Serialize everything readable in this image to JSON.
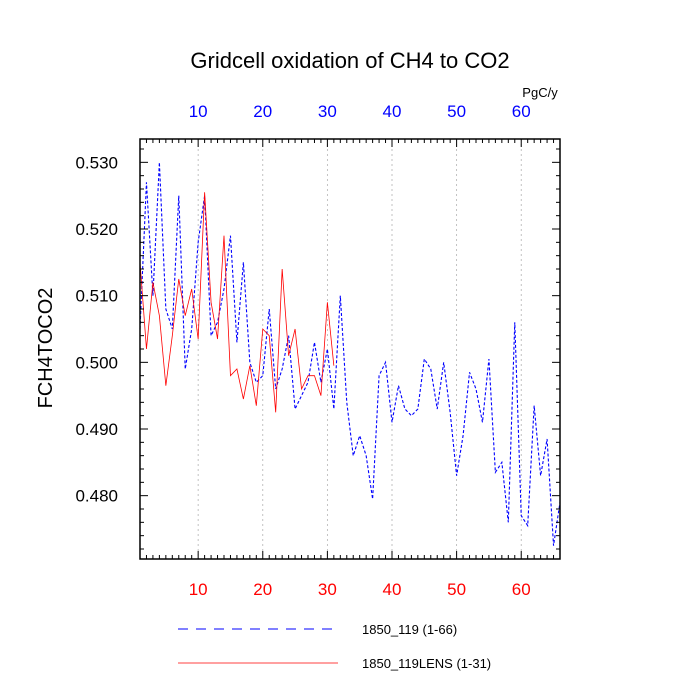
{
  "chart_data": {
    "type": "line",
    "title": "Gridcell oxidation of CH4 to CO2",
    "ylabel": "FCH4TOCO2",
    "xlabel": "",
    "units_label": "PgC/y",
    "xlim": [
      1,
      66
    ],
    "ylim": [
      0.4705,
      0.5335
    ],
    "x_ticks": [
      10,
      20,
      30,
      40,
      50,
      60
    ],
    "x_tick_labels": [
      "10",
      "20",
      "30",
      "40",
      "50",
      "60"
    ],
    "y_ticks": [
      0.48,
      0.49,
      0.5,
      0.51,
      0.52,
      0.53
    ],
    "y_tick_labels": [
      "0.480",
      "0.490",
      "0.500",
      "0.510",
      "0.520",
      "0.530"
    ],
    "series": [
      {
        "name": "1850_119 (1-66)",
        "color": "#0000ff",
        "style": "dashed",
        "x": [
          1,
          2,
          3,
          4,
          5,
          6,
          7,
          8,
          9,
          10,
          11,
          12,
          13,
          14,
          15,
          16,
          17,
          18,
          19,
          20,
          21,
          22,
          23,
          24,
          25,
          26,
          27,
          28,
          29,
          30,
          31,
          32,
          33,
          34,
          35,
          36,
          37,
          38,
          39,
          40,
          41,
          42,
          43,
          44,
          45,
          46,
          47,
          48,
          49,
          50,
          51,
          52,
          53,
          54,
          55,
          56,
          57,
          58,
          59,
          60,
          61,
          62,
          63,
          64,
          65,
          66
        ],
        "values": [
          0.505,
          0.527,
          0.51,
          0.53,
          0.508,
          0.505,
          0.525,
          0.499,
          0.505,
          0.518,
          0.525,
          0.504,
          0.506,
          0.511,
          0.519,
          0.503,
          0.515,
          0.5,
          0.497,
          0.498,
          0.508,
          0.496,
          0.499,
          0.504,
          0.493,
          0.495,
          0.497,
          0.503,
          0.497,
          0.502,
          0.493,
          0.51,
          0.494,
          0.486,
          0.489,
          0.486,
          0.4795,
          0.498,
          0.5,
          0.491,
          0.4965,
          0.493,
          0.492,
          0.493,
          0.5005,
          0.499,
          0.493,
          0.5,
          0.4925,
          0.483,
          0.489,
          0.4985,
          0.496,
          0.491,
          0.5005,
          0.4835,
          0.485,
          0.476,
          0.506,
          0.477,
          0.4755,
          0.4935,
          0.483,
          0.4885,
          0.4725,
          0.479
        ]
      },
      {
        "name": "1850_119LENS (1-31)",
        "color": "#ff0000",
        "style": "solid",
        "x": [
          1,
          2,
          3,
          4,
          5,
          6,
          7,
          8,
          9,
          10,
          11,
          12,
          13,
          14,
          15,
          16,
          17,
          18,
          19,
          20,
          21,
          22,
          23,
          24,
          25,
          26,
          27,
          28,
          29,
          30,
          31
        ],
        "values": [
          0.515,
          0.502,
          0.512,
          0.507,
          0.4965,
          0.504,
          0.5125,
          0.507,
          0.511,
          0.5035,
          0.5255,
          0.509,
          0.5035,
          0.519,
          0.498,
          0.499,
          0.4945,
          0.4995,
          0.4935,
          0.505,
          0.504,
          0.4925,
          0.514,
          0.501,
          0.505,
          0.496,
          0.498,
          0.498,
          0.495,
          0.509,
          0.4995
        ]
      }
    ],
    "axis_colors": {
      "bottom": "#ff0000",
      "top": "#0000ff"
    },
    "grid": "vertical-dotted",
    "legend_position": "bottom"
  }
}
